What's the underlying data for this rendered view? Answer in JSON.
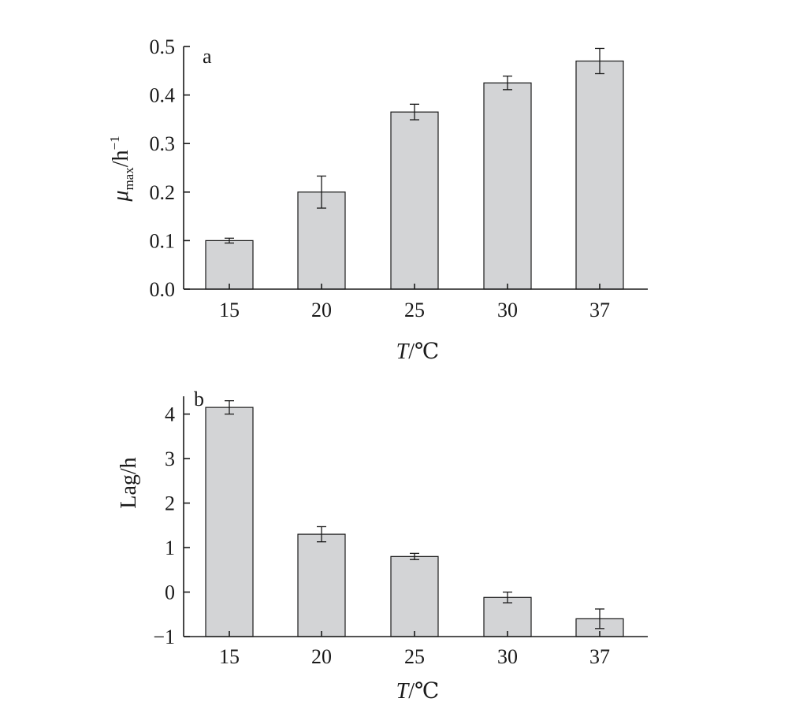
{
  "chart_data": [
    {
      "type": "bar",
      "panel_label": "a",
      "categories": [
        "15",
        "20",
        "25",
        "30",
        "37"
      ],
      "values": [
        0.1,
        0.2,
        0.365,
        0.425,
        0.47
      ],
      "errors": [
        0.005,
        0.033,
        0.016,
        0.014,
        0.026
      ],
      "xlabel": "T/℃",
      "ylabel_symbol": "μ",
      "ylabel_subscript": "max",
      "ylabel_unit": "/h",
      "ylabel_exponent": "−1",
      "ylim": [
        0.0,
        0.5
      ],
      "yticks": [
        0.0,
        0.1,
        0.2,
        0.3,
        0.4,
        0.5
      ],
      "ytick_labels": [
        "0.0",
        "0.1",
        "0.2",
        "0.3",
        "0.4",
        "0.5"
      ],
      "bar_color": "#d3d4d6"
    },
    {
      "type": "bar",
      "panel_label": "b",
      "categories": [
        "15",
        "20",
        "25",
        "30",
        "37"
      ],
      "values": [
        4.15,
        1.3,
        0.8,
        -0.12,
        -0.6
      ],
      "errors": [
        0.15,
        0.17,
        0.07,
        0.12,
        0.22
      ],
      "xlabel": "T/℃",
      "ylabel": "Lag/h",
      "ylim": [
        -1,
        4.4
      ],
      "yticks": [
        -1,
        0,
        1,
        2,
        3,
        4
      ],
      "ytick_labels": [
        "−1",
        "0",
        "1",
        "2",
        "3",
        "4"
      ],
      "bar_color": "#d3d4d6"
    }
  ]
}
